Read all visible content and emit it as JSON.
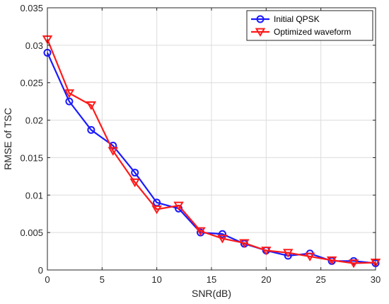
{
  "chart_data": {
    "type": "line",
    "title": "",
    "xlabel": "SNR(dB)",
    "ylabel": "RMSE of TSC",
    "xlim": [
      0,
      30
    ],
    "ylim": [
      0,
      0.035
    ],
    "xticks": [
      0,
      5,
      10,
      15,
      20,
      25,
      30
    ],
    "yticks": [
      0,
      0.005,
      0.01,
      0.015,
      0.02,
      0.025,
      0.03,
      0.035
    ],
    "xtick_labels": [
      "0",
      "5",
      "10",
      "15",
      "20",
      "25",
      "30"
    ],
    "ytick_labels": [
      "0",
      "0.005",
      "0.01",
      "0.015",
      "0.02",
      "0.025",
      "0.03",
      "0.035"
    ],
    "grid": true,
    "legend_position": "top-right",
    "x": [
      0,
      2,
      4,
      6,
      8,
      10,
      12,
      14,
      16,
      18,
      20,
      22,
      24,
      26,
      28,
      30
    ],
    "series": [
      {
        "name": "Initial QPSK",
        "color": "#1a1aff",
        "marker": "circle",
        "values": [
          0.029,
          0.0225,
          0.0187,
          0.0166,
          0.013,
          0.009,
          0.0082,
          0.005,
          0.0048,
          0.0035,
          0.0026,
          0.0019,
          0.0022,
          0.0012,
          0.0012,
          0.0009
        ]
      },
      {
        "name": "Optimized waveform",
        "color": "#ff1a1a",
        "marker": "triangle-down",
        "values": [
          0.0308,
          0.0236,
          0.022,
          0.0159,
          0.0117,
          0.0081,
          0.0086,
          0.0052,
          0.0042,
          0.0036,
          0.0026,
          0.0023,
          0.0018,
          0.0013,
          0.0009,
          0.001
        ]
      }
    ]
  }
}
